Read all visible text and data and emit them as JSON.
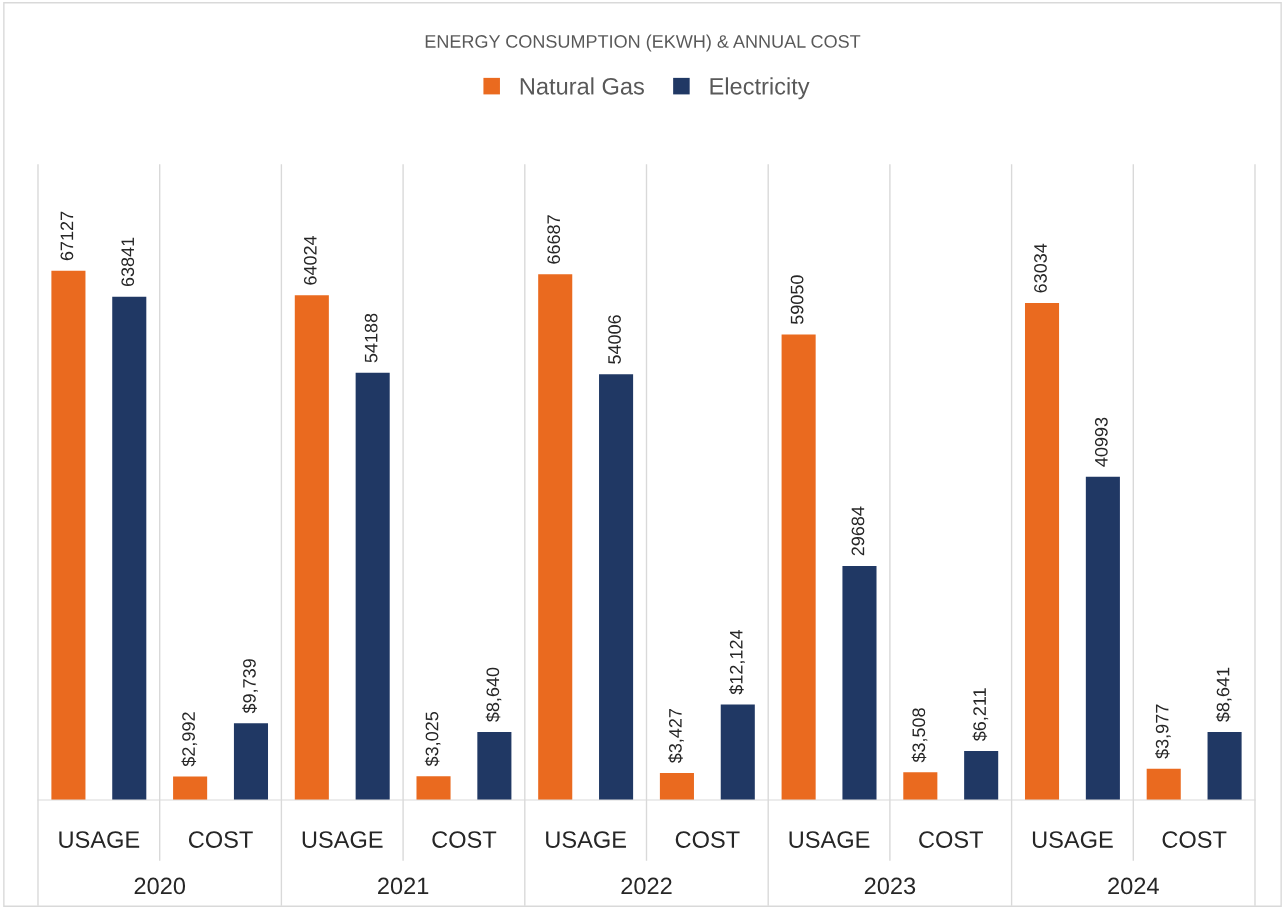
{
  "chart_data": {
    "type": "bar",
    "title": "ENERGY CONSUMPTION (EKWH) & ANNUAL COST",
    "categories": [
      "USAGE",
      "COST",
      "USAGE",
      "COST",
      "USAGE",
      "COST",
      "USAGE",
      "COST",
      "USAGE",
      "COST"
    ],
    "series": [
      {
        "name": "Natural Gas",
        "color": "#ea6a1f",
        "values": [
          67127,
          2992,
          64024,
          3025,
          66687,
          3427,
          59050,
          3508,
          63034,
          3977
        ],
        "value_labels": [
          "67127",
          "$2,992",
          "64024",
          "$3,025",
          "66687",
          "$3,427",
          "59050",
          "$3,508",
          "63034",
          "$3,977"
        ]
      },
      {
        "name": "Electricity",
        "color": "#203864",
        "values": [
          63841,
          9739,
          54188,
          8640,
          54006,
          12124,
          29684,
          6211,
          40993,
          8641
        ],
        "value_labels": [
          "63841",
          "$9,739",
          "54188",
          "$8,640",
          "54006",
          "$12,124",
          "29684",
          "$6,211",
          "40993",
          "$8,641"
        ]
      }
    ],
    "annotations": [
      "2020",
      "2021",
      "2022",
      "2023",
      "2024"
    ],
    "legend": "top",
    "grid": false,
    "tick_labels": "x"
  }
}
